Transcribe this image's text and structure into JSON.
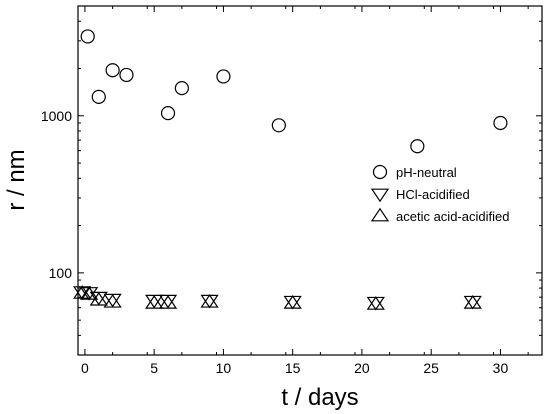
{
  "chart_data": {
    "type": "scatter",
    "xlabel": "t / days",
    "ylabel": "r / nm",
    "xlim": [
      -0.5,
      33
    ],
    "ylim": [
      30,
      5000
    ],
    "yscale": "log",
    "x_ticks": [
      0,
      5,
      10,
      15,
      20,
      25,
      30
    ],
    "x_tick_labels": [
      "0",
      "5",
      "10",
      "15",
      "20",
      "25",
      "30"
    ],
    "y_ticks": [
      100,
      1000
    ],
    "y_tick_labels": [
      "100",
      "1000"
    ],
    "grid": false,
    "legend_position": "right",
    "series": [
      {
        "name": "pH-neutral",
        "marker": "circle",
        "points": [
          {
            "x": 0.2,
            "y": 3200
          },
          {
            "x": 1,
            "y": 1320
          },
          {
            "x": 2,
            "y": 1950
          },
          {
            "x": 3,
            "y": 1820
          },
          {
            "x": 6,
            "y": 1040
          },
          {
            "x": 7,
            "y": 1500
          },
          {
            "x": 10,
            "y": 1780
          },
          {
            "x": 14,
            "y": 870
          },
          {
            "x": 24,
            "y": 640
          },
          {
            "x": 30,
            "y": 900
          }
        ]
      },
      {
        "name": "HCl-acidified",
        "marker": "triangle-down",
        "points": [
          {
            "x": -0.2,
            "y": 76
          },
          {
            "x": 0.3,
            "y": 75
          },
          {
            "x": 1,
            "y": 70
          },
          {
            "x": 2,
            "y": 68
          },
          {
            "x": 5,
            "y": 67
          },
          {
            "x": 6,
            "y": 67
          },
          {
            "x": 9,
            "y": 67
          },
          {
            "x": 15,
            "y": 66
          },
          {
            "x": 21,
            "y": 65
          },
          {
            "x": 28,
            "y": 66
          }
        ]
      },
      {
        "name": "acetic acid-acidified",
        "marker": "triangle-up",
        "points": [
          {
            "x": -0.2,
            "y": 74
          },
          {
            "x": 0.3,
            "y": 73
          },
          {
            "x": 1,
            "y": 67
          },
          {
            "x": 2,
            "y": 65
          },
          {
            "x": 5,
            "y": 64
          },
          {
            "x": 6,
            "y": 64
          },
          {
            "x": 9,
            "y": 65
          },
          {
            "x": 15,
            "y": 64
          },
          {
            "x": 21,
            "y": 63
          },
          {
            "x": 28,
            "y": 64
          }
        ]
      }
    ]
  }
}
